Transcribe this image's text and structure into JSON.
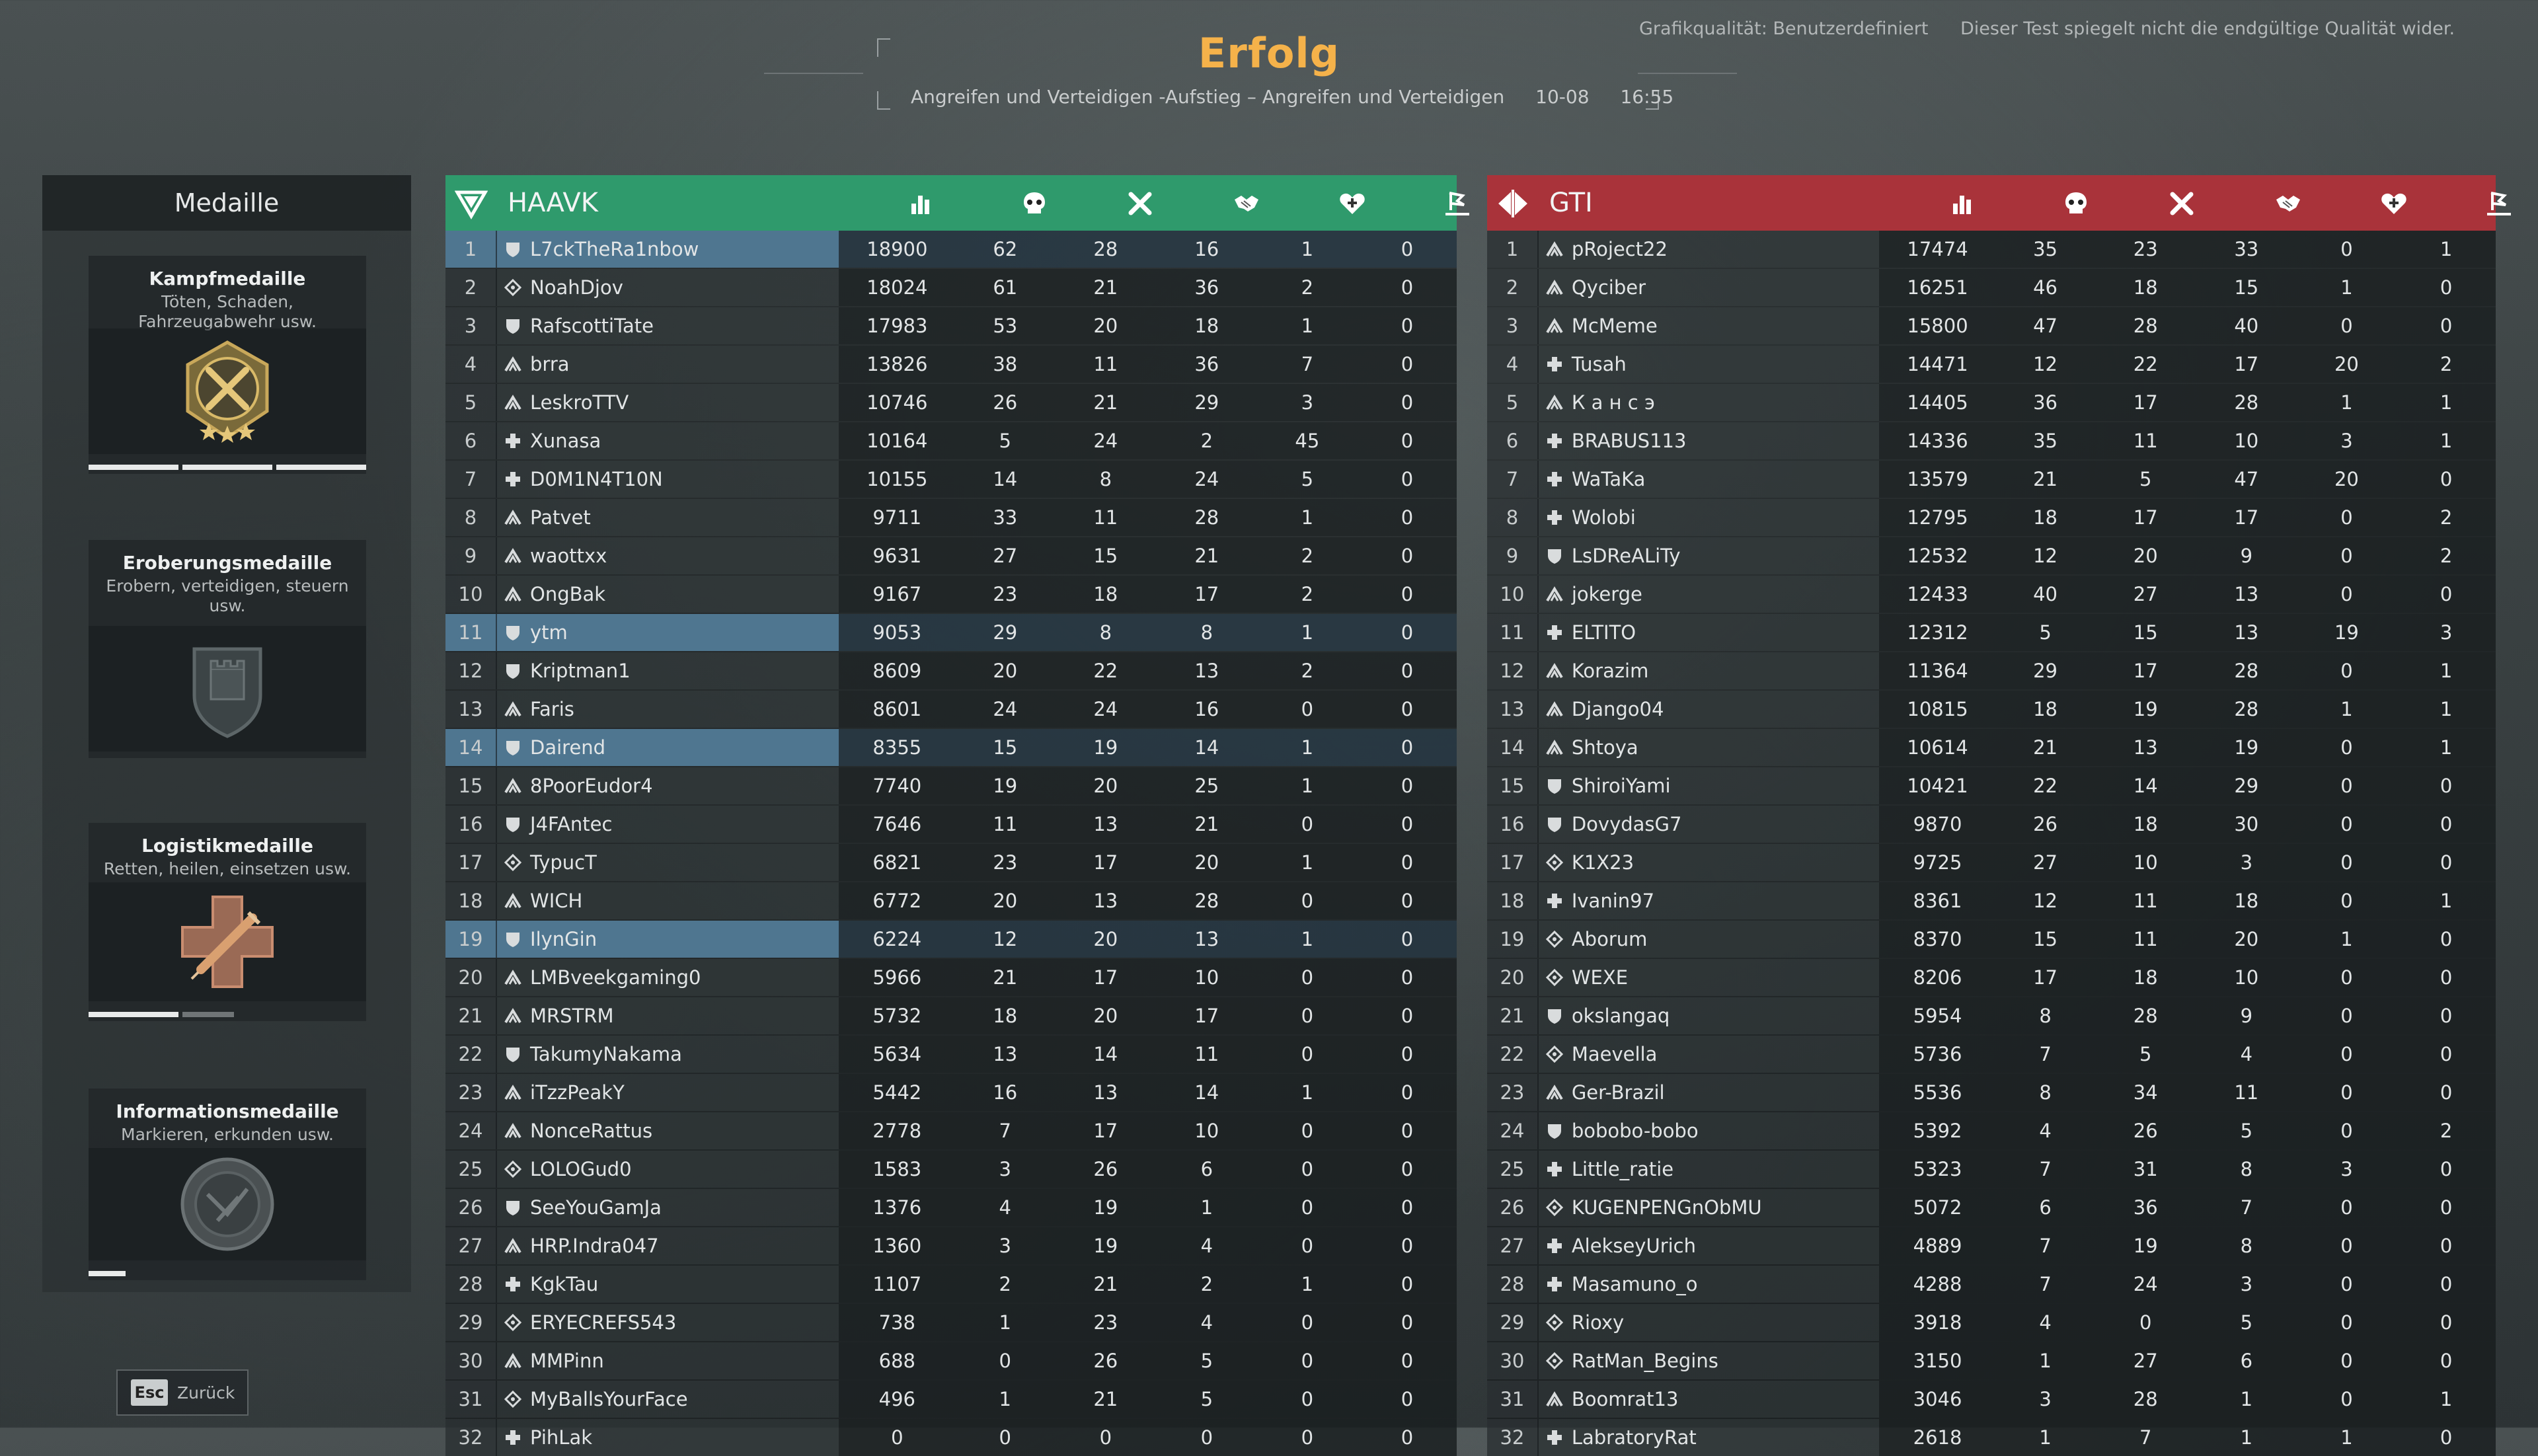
{
  "header": {
    "title": "Erfolg",
    "mode": "Angreifen und Verteidigen -Aufstieg – Angreifen und Verteidigen",
    "date": "10-08",
    "time": "16:55",
    "graphics_quality": "Grafikqualität: Benutzerdefiniert",
    "disclaimer": "Dieser Test spiegelt nicht die endgültige Qualität wider."
  },
  "medals": {
    "heading": "Medaille",
    "items": [
      {
        "title": "Kampfmedaille",
        "desc": "Töten, Schaden, Fahrzeugabwehr usw.",
        "progress_segments": 3,
        "progress_filled": 3
      },
      {
        "title": "Eroberungsmedaille",
        "desc": "Erobern, verteidigen, steuern usw.",
        "progress_segments": 0,
        "progress_filled": 0
      },
      {
        "title": "Logistikmedaille",
        "desc": "Retten, heilen, einsetzen usw.",
        "progress_segments": 2,
        "progress_filled": 1
      },
      {
        "title": "Informationsmedaille",
        "desc": "Markieren, erkunden usw.",
        "progress_segments": 1,
        "progress_filled": 1
      }
    ]
  },
  "back": {
    "key": "Esc",
    "label": "Zurück"
  },
  "colors": {
    "team_a": "#2f9a6c",
    "team_b": "#a9333a",
    "title": "#f5b24a",
    "highlight": "#4f7690"
  },
  "column_icons": [
    "score-icon",
    "skull-icon",
    "crossed-swords-icon",
    "handshake-icon",
    "heart-icon",
    "flag-icon"
  ],
  "teams": [
    {
      "name": "HAAVK",
      "logo": "haavk-logo-icon",
      "players": [
        {
          "rank": "1",
          "name": "L7ckTheRa1nbow",
          "role": "shield",
          "hl": true,
          "stats": [
            "18900",
            "62",
            "28",
            "16",
            "1",
            "0"
          ]
        },
        {
          "rank": "2",
          "name": "NoahDjov",
          "role": "recon",
          "stats": [
            "18024",
            "61",
            "21",
            "36",
            "2",
            "0"
          ]
        },
        {
          "rank": "3",
          "name": "RafscottiTate",
          "role": "shield",
          "stats": [
            "17983",
            "53",
            "20",
            "18",
            "1",
            "0"
          ]
        },
        {
          "rank": "4",
          "name": "brra",
          "role": "assault",
          "stats": [
            "13826",
            "38",
            "11",
            "36",
            "7",
            "0"
          ]
        },
        {
          "rank": "5",
          "name": "LeskroTTV",
          "role": "assault",
          "stats": [
            "10746",
            "26",
            "21",
            "29",
            "3",
            "0"
          ]
        },
        {
          "rank": "6",
          "name": "Xunasa",
          "role": "medic",
          "stats": [
            "10164",
            "5",
            "24",
            "2",
            "45",
            "0"
          ]
        },
        {
          "rank": "7",
          "name": "D0M1N4T10N",
          "role": "medic",
          "stats": [
            "10155",
            "14",
            "8",
            "24",
            "5",
            "0"
          ]
        },
        {
          "rank": "8",
          "name": "Patvet",
          "role": "assault",
          "stats": [
            "9711",
            "33",
            "11",
            "28",
            "1",
            "0"
          ]
        },
        {
          "rank": "9",
          "name": "waottxx",
          "role": "assault",
          "stats": [
            "9631",
            "27",
            "15",
            "21",
            "2",
            "0"
          ]
        },
        {
          "rank": "10",
          "name": "OngBak",
          "role": "assault",
          "stats": [
            "9167",
            "23",
            "18",
            "17",
            "2",
            "0"
          ]
        },
        {
          "rank": "11",
          "name": "ytm",
          "role": "shield",
          "hl": true,
          "stats": [
            "9053",
            "29",
            "8",
            "8",
            "1",
            "0"
          ]
        },
        {
          "rank": "12",
          "name": "Kriptman1",
          "role": "shield",
          "stats": [
            "8609",
            "20",
            "22",
            "13",
            "2",
            "0"
          ]
        },
        {
          "rank": "13",
          "name": "Faris",
          "role": "assault",
          "stats": [
            "8601",
            "24",
            "24",
            "16",
            "0",
            "0"
          ]
        },
        {
          "rank": "14",
          "name": "Dairend",
          "role": "shield",
          "hl": true,
          "stats": [
            "8355",
            "15",
            "19",
            "14",
            "1",
            "0"
          ]
        },
        {
          "rank": "15",
          "name": "8PoorEudor4",
          "role": "assault",
          "stats": [
            "7740",
            "19",
            "20",
            "25",
            "1",
            "0"
          ]
        },
        {
          "rank": "16",
          "name": "J4FAntec",
          "role": "shield",
          "stats": [
            "7646",
            "11",
            "13",
            "21",
            "0",
            "0"
          ]
        },
        {
          "rank": "17",
          "name": "TypucT",
          "role": "recon",
          "stats": [
            "6821",
            "23",
            "17",
            "20",
            "1",
            "0"
          ]
        },
        {
          "rank": "18",
          "name": "WICH",
          "role": "assault",
          "stats": [
            "6772",
            "20",
            "13",
            "28",
            "0",
            "0"
          ]
        },
        {
          "rank": "19",
          "name": "IlynGin",
          "role": "shield",
          "hl": true,
          "stats": [
            "6224",
            "12",
            "20",
            "13",
            "1",
            "0"
          ]
        },
        {
          "rank": "20",
          "name": "LMBveekgaming0",
          "role": "assault",
          "stats": [
            "5966",
            "21",
            "17",
            "10",
            "0",
            "0"
          ]
        },
        {
          "rank": "21",
          "name": "MRSTRM",
          "role": "assault",
          "stats": [
            "5732",
            "18",
            "20",
            "17",
            "0",
            "0"
          ]
        },
        {
          "rank": "22",
          "name": "TakumyNakama",
          "role": "shield",
          "stats": [
            "5634",
            "13",
            "14",
            "11",
            "0",
            "0"
          ]
        },
        {
          "rank": "23",
          "name": "iTzzPeakY",
          "role": "assault",
          "stats": [
            "5442",
            "16",
            "13",
            "14",
            "1",
            "0"
          ]
        },
        {
          "rank": "24",
          "name": "NonceRattus",
          "role": "assault",
          "stats": [
            "2778",
            "7",
            "17",
            "10",
            "0",
            "0"
          ]
        },
        {
          "rank": "25",
          "name": "LOLOGud0",
          "role": "recon",
          "stats": [
            "1583",
            "3",
            "26",
            "6",
            "0",
            "0"
          ]
        },
        {
          "rank": "26",
          "name": "SeeYouGamJa",
          "role": "shield",
          "stats": [
            "1376",
            "4",
            "19",
            "1",
            "0",
            "0"
          ]
        },
        {
          "rank": "27",
          "name": "HRP.Indra047",
          "role": "assault",
          "stats": [
            "1360",
            "3",
            "19",
            "4",
            "0",
            "0"
          ]
        },
        {
          "rank": "28",
          "name": "KgkTau",
          "role": "medic",
          "stats": [
            "1107",
            "2",
            "21",
            "2",
            "1",
            "0"
          ]
        },
        {
          "rank": "29",
          "name": "ERYECREFS543",
          "role": "recon",
          "stats": [
            "738",
            "1",
            "23",
            "4",
            "0",
            "0"
          ]
        },
        {
          "rank": "30",
          "name": "MMPinn",
          "role": "assault",
          "stats": [
            "688",
            "0",
            "26",
            "5",
            "0",
            "0"
          ]
        },
        {
          "rank": "31",
          "name": "MyBallsYourFace",
          "role": "recon",
          "stats": [
            "496",
            "1",
            "21",
            "5",
            "0",
            "0"
          ]
        },
        {
          "rank": "32",
          "name": "PihLak",
          "role": "medic",
          "stats": [
            "0",
            "0",
            "0",
            "0",
            "0",
            "0"
          ]
        }
      ]
    },
    {
      "name": "GTI",
      "logo": "gti-logo-icon",
      "players": [
        {
          "rank": "1",
          "name": "pRoject22",
          "role": "assault",
          "stats": [
            "17474",
            "35",
            "23",
            "33",
            "0",
            "1"
          ]
        },
        {
          "rank": "2",
          "name": "Qyciber",
          "role": "assault",
          "stats": [
            "16251",
            "46",
            "18",
            "15",
            "1",
            "0"
          ]
        },
        {
          "rank": "3",
          "name": "McMeme",
          "role": "assault",
          "stats": [
            "15800",
            "47",
            "28",
            "40",
            "0",
            "0"
          ]
        },
        {
          "rank": "4",
          "name": "Tusah",
          "role": "medic",
          "stats": [
            "14471",
            "12",
            "22",
            "17",
            "20",
            "2"
          ]
        },
        {
          "rank": "5",
          "name": "К а н с э",
          "role": "assault",
          "stats": [
            "14405",
            "36",
            "17",
            "28",
            "1",
            "1"
          ]
        },
        {
          "rank": "6",
          "name": "BRABUS113",
          "role": "medic",
          "stats": [
            "14336",
            "35",
            "11",
            "10",
            "3",
            "1"
          ]
        },
        {
          "rank": "7",
          "name": "WaTaKa",
          "role": "medic",
          "stats": [
            "13579",
            "21",
            "5",
            "47",
            "20",
            "0"
          ]
        },
        {
          "rank": "8",
          "name": "Wolobi",
          "role": "medic",
          "stats": [
            "12795",
            "18",
            "17",
            "17",
            "0",
            "2"
          ]
        },
        {
          "rank": "9",
          "name": "LsDReALiTy",
          "role": "shield",
          "stats": [
            "12532",
            "12",
            "20",
            "9",
            "0",
            "2"
          ]
        },
        {
          "rank": "10",
          "name": "jokerge",
          "role": "assault",
          "stats": [
            "12433",
            "40",
            "27",
            "13",
            "0",
            "0"
          ]
        },
        {
          "rank": "11",
          "name": "ELTITO",
          "role": "medic",
          "stats": [
            "12312",
            "5",
            "15",
            "13",
            "19",
            "3"
          ]
        },
        {
          "rank": "12",
          "name": "Korazim",
          "role": "assault",
          "stats": [
            "11364",
            "29",
            "17",
            "28",
            "0",
            "1"
          ]
        },
        {
          "rank": "13",
          "name": "Django04",
          "role": "assault",
          "stats": [
            "10815",
            "18",
            "19",
            "28",
            "1",
            "1"
          ]
        },
        {
          "rank": "14",
          "name": "Shtoya",
          "role": "assault",
          "stats": [
            "10614",
            "21",
            "13",
            "19",
            "0",
            "1"
          ]
        },
        {
          "rank": "15",
          "name": "ShiroiYami",
          "role": "shield",
          "stats": [
            "10421",
            "22",
            "14",
            "29",
            "0",
            "0"
          ]
        },
        {
          "rank": "16",
          "name": "DovydasG7",
          "role": "shield",
          "stats": [
            "9870",
            "26",
            "18",
            "30",
            "0",
            "0"
          ]
        },
        {
          "rank": "17",
          "name": "K1X23",
          "role": "recon",
          "stats": [
            "9725",
            "27",
            "10",
            "3",
            "0",
            "0"
          ]
        },
        {
          "rank": "18",
          "name": "Ivanin97",
          "role": "medic",
          "stats": [
            "8361",
            "12",
            "11",
            "18",
            "0",
            "1"
          ]
        },
        {
          "rank": "19",
          "name": "Aborum",
          "role": "recon",
          "stats": [
            "8370",
            "15",
            "11",
            "20",
            "1",
            "0"
          ]
        },
        {
          "rank": "20",
          "name": "WEXE",
          "role": "recon",
          "stats": [
            "8206",
            "17",
            "18",
            "10",
            "0",
            "0"
          ]
        },
        {
          "rank": "21",
          "name": "okslangaq",
          "role": "shield",
          "stats": [
            "5954",
            "8",
            "28",
            "9",
            "0",
            "0"
          ]
        },
        {
          "rank": "22",
          "name": "Maevella",
          "role": "recon",
          "stats": [
            "5736",
            "7",
            "5",
            "4",
            "0",
            "0"
          ]
        },
        {
          "rank": "23",
          "name": "Ger-Brazil",
          "role": "assault",
          "stats": [
            "5536",
            "8",
            "34",
            "11",
            "0",
            "0"
          ]
        },
        {
          "rank": "24",
          "name": "bobobo-bobo",
          "role": "shield",
          "stats": [
            "5392",
            "4",
            "26",
            "5",
            "0",
            "2"
          ]
        },
        {
          "rank": "25",
          "name": "Little_ratie",
          "role": "medic",
          "stats": [
            "5323",
            "7",
            "31",
            "8",
            "3",
            "0"
          ]
        },
        {
          "rank": "26",
          "name": "KUGENPENGnObMU",
          "role": "recon",
          "stats": [
            "5072",
            "6",
            "36",
            "7",
            "0",
            "0"
          ]
        },
        {
          "rank": "27",
          "name": "AlekseyUrich",
          "role": "medic",
          "stats": [
            "4889",
            "7",
            "19",
            "8",
            "0",
            "0"
          ]
        },
        {
          "rank": "28",
          "name": "Masamuno_o",
          "role": "medic",
          "stats": [
            "4288",
            "7",
            "24",
            "3",
            "0",
            "0"
          ]
        },
        {
          "rank": "29",
          "name": "Rioxy",
          "role": "recon",
          "stats": [
            "3918",
            "4",
            "0",
            "5",
            "0",
            "0"
          ]
        },
        {
          "rank": "30",
          "name": "RatMan_Begins",
          "role": "recon",
          "stats": [
            "3150",
            "1",
            "27",
            "6",
            "0",
            "0"
          ]
        },
        {
          "rank": "31",
          "name": "Boomrat13",
          "role": "assault",
          "stats": [
            "3046",
            "3",
            "28",
            "1",
            "0",
            "1"
          ]
        },
        {
          "rank": "32",
          "name": "LabratoryRat",
          "role": "medic",
          "stats": [
            "2618",
            "1",
            "7",
            "1",
            "1",
            "0"
          ]
        }
      ]
    }
  ]
}
